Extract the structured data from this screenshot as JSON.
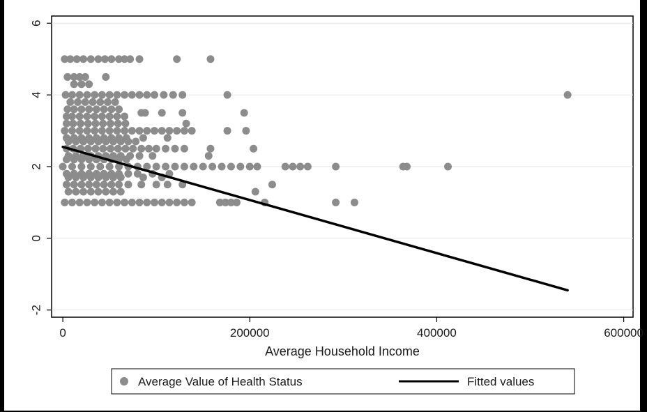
{
  "chart_data": {
    "type": "scatter",
    "title": "",
    "xlabel": "Average Household Income",
    "ylabel": "",
    "xlim": [
      -12000,
      610000
    ],
    "ylim": [
      -2.2,
      6.2
    ],
    "xticks": [
      0,
      200000,
      400000,
      600000
    ],
    "xtick_labels": [
      "0",
      "200000",
      "400000",
      "600000"
    ],
    "yticks": [
      -2,
      0,
      2,
      4,
      6
    ],
    "ytick_labels": [
      "-2",
      "0",
      "2",
      "4",
      "6"
    ],
    "ytick_rotation": "vertical",
    "grid": "horizontal",
    "legend_position": "bottom",
    "colors": {
      "frame": "#000000",
      "panel": "#ffffff",
      "grid": "#e6e6e6",
      "points": "#8c8c8c",
      "fit": "#000000"
    },
    "series": [
      {
        "name": "Average Value of Health Status",
        "kind": "scatter",
        "points": [
          [
            2000,
            5
          ],
          [
            8000,
            5
          ],
          [
            15000,
            5
          ],
          [
            22000,
            5
          ],
          [
            30000,
            5
          ],
          [
            38000,
            5
          ],
          [
            45000,
            5
          ],
          [
            52000,
            5
          ],
          [
            60000,
            5
          ],
          [
            66000,
            5
          ],
          [
            72000,
            5
          ],
          [
            82000,
            5
          ],
          [
            122000,
            5
          ],
          [
            158000,
            5
          ],
          [
            5000,
            4.5
          ],
          [
            12000,
            4.5
          ],
          [
            18000,
            4.5
          ],
          [
            24000,
            4.5
          ],
          [
            46000,
            4.5
          ],
          [
            12000,
            4.3
          ],
          [
            20000,
            4.3
          ],
          [
            28000,
            4.3
          ],
          [
            3000,
            4
          ],
          [
            10000,
            4
          ],
          [
            18000,
            4
          ],
          [
            26000,
            4
          ],
          [
            34000,
            4
          ],
          [
            42000,
            4
          ],
          [
            50000,
            4
          ],
          [
            58000,
            4
          ],
          [
            66000,
            4
          ],
          [
            74000,
            4
          ],
          [
            82000,
            4
          ],
          [
            90000,
            4
          ],
          [
            98000,
            4
          ],
          [
            108000,
            4
          ],
          [
            118000,
            4
          ],
          [
            128000,
            4
          ],
          [
            176000,
            4
          ],
          [
            540000,
            4
          ],
          [
            8000,
            3.8
          ],
          [
            16000,
            3.8
          ],
          [
            24000,
            3.8
          ],
          [
            32000,
            3.8
          ],
          [
            40000,
            3.8
          ],
          [
            48000,
            3.8
          ],
          [
            56000,
            3.8
          ],
          [
            5000,
            3.6
          ],
          [
            12000,
            3.6
          ],
          [
            20000,
            3.6
          ],
          [
            28000,
            3.6
          ],
          [
            36000,
            3.6
          ],
          [
            44000,
            3.6
          ],
          [
            52000,
            3.6
          ],
          [
            60000,
            3.6
          ],
          [
            84000,
            3.5
          ],
          [
            88000,
            3.5
          ],
          [
            106000,
            3.5
          ],
          [
            128000,
            3.5
          ],
          [
            194000,
            3.5
          ],
          [
            4000,
            3.4
          ],
          [
            10000,
            3.4
          ],
          [
            18000,
            3.4
          ],
          [
            26000,
            3.4
          ],
          [
            34000,
            3.4
          ],
          [
            42000,
            3.4
          ],
          [
            50000,
            3.4
          ],
          [
            58000,
            3.4
          ],
          [
            66000,
            3.4
          ],
          [
            4000,
            3.2
          ],
          [
            11000,
            3.2
          ],
          [
            19000,
            3.2
          ],
          [
            27000,
            3.2
          ],
          [
            35000,
            3.2
          ],
          [
            43000,
            3.2
          ],
          [
            51000,
            3.2
          ],
          [
            59000,
            3.2
          ],
          [
            67000,
            3.2
          ],
          [
            132000,
            3.2
          ],
          [
            2000,
            3
          ],
          [
            10000,
            3
          ],
          [
            18000,
            3
          ],
          [
            26000,
            3
          ],
          [
            34000,
            3
          ],
          [
            42000,
            3
          ],
          [
            50000,
            3
          ],
          [
            58000,
            3
          ],
          [
            66000,
            3
          ],
          [
            74000,
            3
          ],
          [
            82000,
            3
          ],
          [
            90000,
            3
          ],
          [
            98000,
            3
          ],
          [
            106000,
            3
          ],
          [
            114000,
            3
          ],
          [
            122000,
            3
          ],
          [
            130000,
            3
          ],
          [
            138000,
            3
          ],
          [
            176000,
            3
          ],
          [
            196000,
            3
          ],
          [
            4000,
            2.8
          ],
          [
            12000,
            2.8
          ],
          [
            20000,
            2.8
          ],
          [
            28000,
            2.8
          ],
          [
            36000,
            2.8
          ],
          [
            44000,
            2.8
          ],
          [
            52000,
            2.8
          ],
          [
            60000,
            2.8
          ],
          [
            68000,
            2.8
          ],
          [
            86000,
            2.8
          ],
          [
            112000,
            2.8
          ],
          [
            6000,
            2.7
          ],
          [
            14000,
            2.7
          ],
          [
            22000,
            2.7
          ],
          [
            30000,
            2.7
          ],
          [
            38000,
            2.7
          ],
          [
            46000,
            2.7
          ],
          [
            54000,
            2.7
          ],
          [
            62000,
            2.7
          ],
          [
            70000,
            2.7
          ],
          [
            78000,
            2.7
          ],
          [
            4000,
            2.5
          ],
          [
            11000,
            2.5
          ],
          [
            19000,
            2.5
          ],
          [
            27000,
            2.5
          ],
          [
            35000,
            2.5
          ],
          [
            43000,
            2.5
          ],
          [
            51000,
            2.5
          ],
          [
            59000,
            2.5
          ],
          [
            67000,
            2.5
          ],
          [
            75000,
            2.5
          ],
          [
            84000,
            2.5
          ],
          [
            92000,
            2.5
          ],
          [
            100000,
            2.5
          ],
          [
            110000,
            2.5
          ],
          [
            120000,
            2.5
          ],
          [
            130000,
            2.5
          ],
          [
            158000,
            2.5
          ],
          [
            204000,
            2.5
          ],
          [
            6000,
            2.3
          ],
          [
            14000,
            2.3
          ],
          [
            22000,
            2.3
          ],
          [
            30000,
            2.3
          ],
          [
            38000,
            2.3
          ],
          [
            46000,
            2.3
          ],
          [
            54000,
            2.3
          ],
          [
            62000,
            2.3
          ],
          [
            72000,
            2.3
          ],
          [
            82000,
            2.3
          ],
          [
            96000,
            2.3
          ],
          [
            156000,
            2.3
          ],
          [
            4000,
            2.2
          ],
          [
            12000,
            2.2
          ],
          [
            20000,
            2.2
          ],
          [
            28000,
            2.2
          ],
          [
            36000,
            2.2
          ],
          [
            44000,
            2.2
          ],
          [
            52000,
            2.2
          ],
          [
            60000,
            2.2
          ],
          [
            68000,
            2.2
          ],
          [
            0,
            2
          ],
          [
            10000,
            2
          ],
          [
            20000,
            2
          ],
          [
            30000,
            2
          ],
          [
            40000,
            2
          ],
          [
            50000,
            2
          ],
          [
            60000,
            2
          ],
          [
            70000,
            2
          ],
          [
            80000,
            2
          ],
          [
            90000,
            2
          ],
          [
            100000,
            2
          ],
          [
            110000,
            2
          ],
          [
            120000,
            2
          ],
          [
            130000,
            2
          ],
          [
            140000,
            2
          ],
          [
            150000,
            2
          ],
          [
            160000,
            2
          ],
          [
            170000,
            2
          ],
          [
            180000,
            2
          ],
          [
            190000,
            2
          ],
          [
            200000,
            2
          ],
          [
            208000,
            2
          ],
          [
            238000,
            2
          ],
          [
            246000,
            2
          ],
          [
            254000,
            2
          ],
          [
            262000,
            2
          ],
          [
            292000,
            2
          ],
          [
            364000,
            2
          ],
          [
            368000,
            2
          ],
          [
            412000,
            2
          ],
          [
            4000,
            1.8
          ],
          [
            12000,
            1.8
          ],
          [
            20000,
            1.8
          ],
          [
            28000,
            1.8
          ],
          [
            36000,
            1.8
          ],
          [
            44000,
            1.8
          ],
          [
            52000,
            1.8
          ],
          [
            60000,
            1.8
          ],
          [
            70000,
            1.8
          ],
          [
            80000,
            1.8
          ],
          [
            96000,
            1.8
          ],
          [
            114000,
            1.8
          ],
          [
            6000,
            1.7
          ],
          [
            14000,
            1.7
          ],
          [
            22000,
            1.7
          ],
          [
            30000,
            1.7
          ],
          [
            38000,
            1.7
          ],
          [
            46000,
            1.7
          ],
          [
            54000,
            1.7
          ],
          [
            62000,
            1.7
          ],
          [
            86000,
            1.7
          ],
          [
            106000,
            1.7
          ],
          [
            4000,
            1.5
          ],
          [
            12000,
            1.5
          ],
          [
            20000,
            1.5
          ],
          [
            28000,
            1.5
          ],
          [
            36000,
            1.5
          ],
          [
            44000,
            1.5
          ],
          [
            52000,
            1.5
          ],
          [
            60000,
            1.5
          ],
          [
            70000,
            1.5
          ],
          [
            84000,
            1.5
          ],
          [
            100000,
            1.5
          ],
          [
            112000,
            1.5
          ],
          [
            128000,
            1.5
          ],
          [
            224000,
            1.5
          ],
          [
            6000,
            1.3
          ],
          [
            14000,
            1.3
          ],
          [
            22000,
            1.3
          ],
          [
            30000,
            1.3
          ],
          [
            38000,
            1.3
          ],
          [
            46000,
            1.3
          ],
          [
            54000,
            1.3
          ],
          [
            62000,
            1.3
          ],
          [
            206000,
            1.3
          ],
          [
            2000,
            1
          ],
          [
            10000,
            1
          ],
          [
            18000,
            1
          ],
          [
            26000,
            1
          ],
          [
            34000,
            1
          ],
          [
            42000,
            1
          ],
          [
            50000,
            1
          ],
          [
            58000,
            1
          ],
          [
            66000,
            1
          ],
          [
            74000,
            1
          ],
          [
            82000,
            1
          ],
          [
            90000,
            1
          ],
          [
            98000,
            1
          ],
          [
            106000,
            1
          ],
          [
            114000,
            1
          ],
          [
            122000,
            1
          ],
          [
            130000,
            1
          ],
          [
            138000,
            1
          ],
          [
            168000,
            1
          ],
          [
            174000,
            1
          ],
          [
            180000,
            1
          ],
          [
            186000,
            1
          ],
          [
            216000,
            1
          ],
          [
            292000,
            1
          ],
          [
            312000,
            1
          ]
        ]
      },
      {
        "name": "Fitted values",
        "kind": "line",
        "points": [
          [
            0,
            2.55
          ],
          [
            540000,
            -1.45
          ]
        ]
      }
    ]
  }
}
